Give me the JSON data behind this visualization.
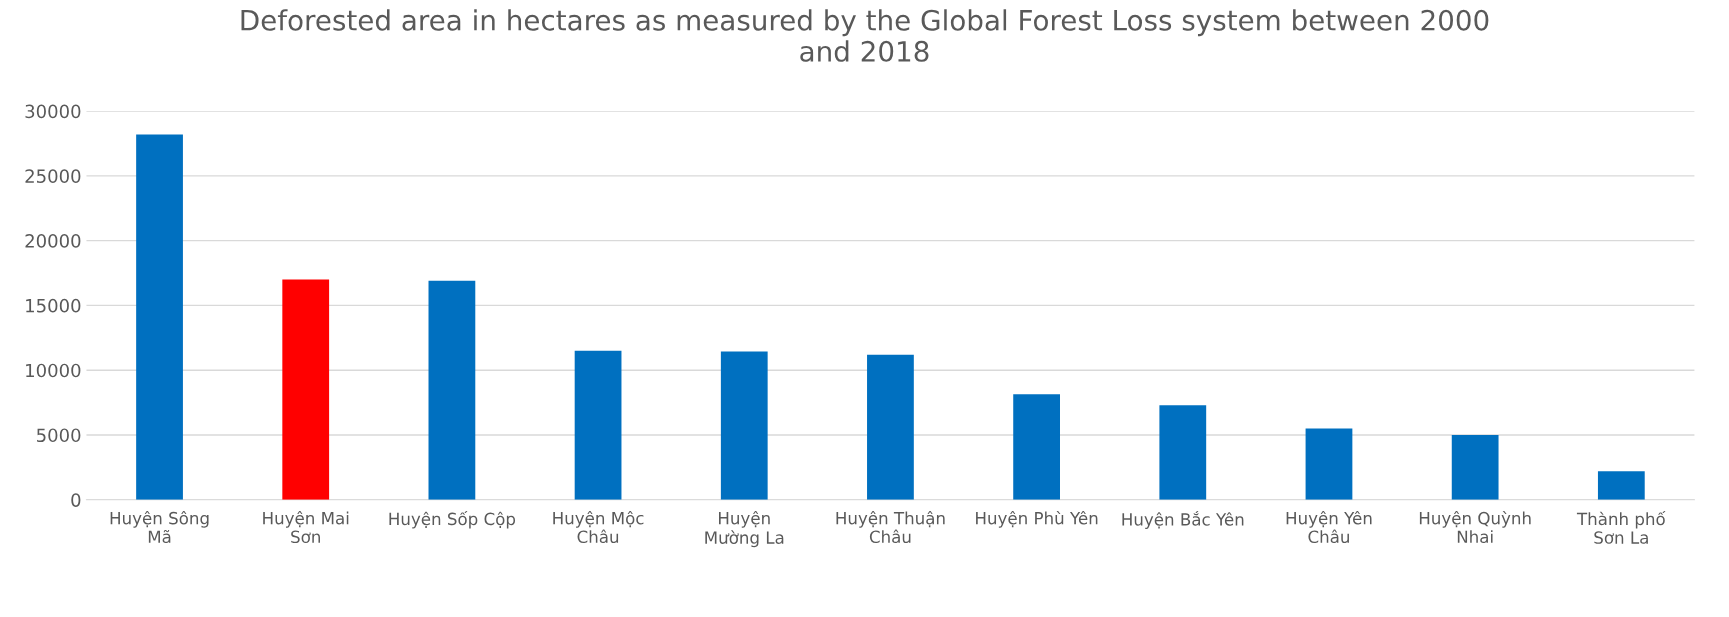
{
  "chart_data": {
    "type": "bar",
    "title": "Deforested area in hectares as measured by the Global Forest Loss system between 2000\nand 2018",
    "categories": [
      "Huyện Sông\nMã",
      "Huyện Mai\nSơn",
      "Huyện Sốp Cộp",
      "Huyện Mộc\nChâu",
      "Huyện\nMường La",
      "Huyện Thuận\nChâu",
      "Huyện Phù Yên",
      "Huyện Bắc Yên",
      "Huyện Yên\nChâu",
      "Huyện Quỳnh\nNhai",
      "Thành phố\nSơn La"
    ],
    "values": [
      28200,
      17000,
      16900,
      11500,
      11450,
      11200,
      8150,
      7300,
      5500,
      5000,
      2200
    ],
    "colors": [
      "#0070c0",
      "#ff0000",
      "#0070c0",
      "#0070c0",
      "#0070c0",
      "#0070c0",
      "#0070c0",
      "#0070c0",
      "#0070c0",
      "#0070c0",
      "#0070c0"
    ],
    "ylim": [
      0,
      30000
    ],
    "yticks": [
      0,
      5000,
      10000,
      15000,
      20000,
      25000,
      30000
    ],
    "grid": "y",
    "legend": false
  }
}
